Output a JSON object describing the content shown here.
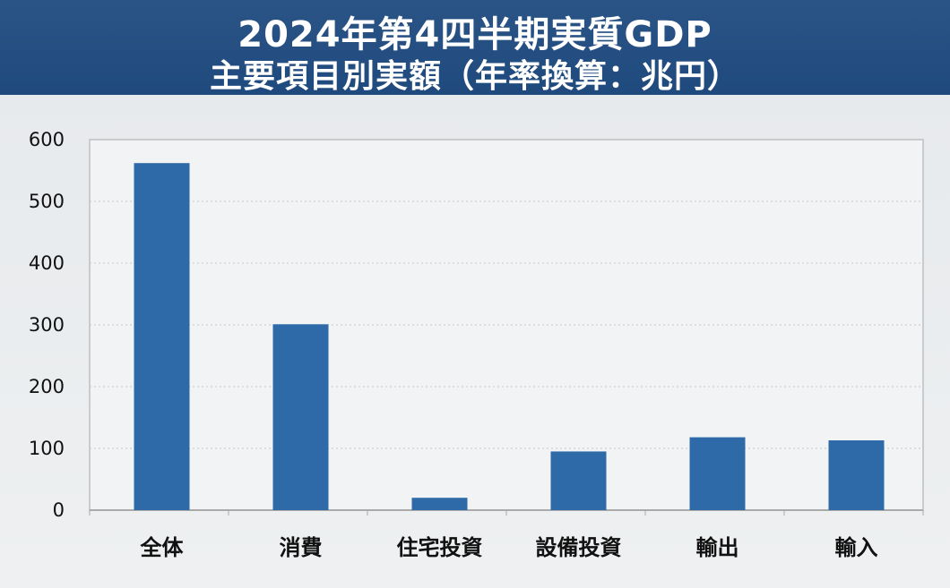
{
  "title": {
    "line1": "2024年第4四半期実質GDP",
    "line2": "主要項目別実額（年率換算：兆円）"
  },
  "colors": {
    "banner": "#1f4a7e",
    "bar": "#2e6aa8",
    "plot_bg": "#f1f3f4"
  },
  "chart_data": {
    "type": "bar",
    "categories": [
      "全体",
      "消費",
      "住宅投資",
      "設備投資",
      "輸出",
      "輸入"
    ],
    "values": [
      562,
      301,
      20,
      95,
      118,
      113
    ],
    "ylim": [
      0,
      600
    ],
    "yticks": [
      0,
      100,
      200,
      300,
      400,
      500,
      600
    ],
    "grid": true,
    "legend": "none"
  }
}
